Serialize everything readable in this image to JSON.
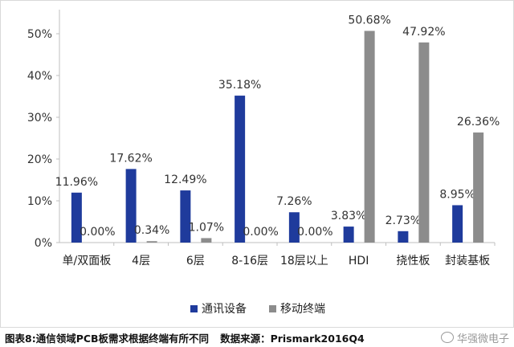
{
  "chart_data": {
    "type": "bar",
    "categories": [
      "单/双面板",
      "4层",
      "6层",
      "8-16层",
      "18层以上",
      "HDI",
      "挠性板",
      "封装基板"
    ],
    "series": [
      {
        "name": "通讯设备",
        "values": [
          11.96,
          17.62,
          12.49,
          35.18,
          7.26,
          3.83,
          2.73,
          8.95
        ],
        "labels": [
          "11.96%",
          "17.62%",
          "12.49%",
          "35.18%",
          "7.26%",
          "3.83%",
          "2.73%",
          "8.95%"
        ]
      },
      {
        "name": "移动终端",
        "values": [
          0.0,
          0.34,
          1.07,
          0.0,
          0.0,
          50.68,
          47.92,
          26.36
        ],
        "labels": [
          "0.00%",
          "0.34%",
          "1.07%",
          "0.00%",
          "0.00%",
          "50.68%",
          "47.92%",
          "26.36%"
        ]
      }
    ],
    "y_ticks": [
      "0%",
      "10%",
      "20%",
      "30%",
      "40%",
      "50%"
    ],
    "ylim": [
      0,
      55
    ],
    "grid": false,
    "legend_position": "bottom",
    "colors": {
      "通讯设备": "#1f3b9c",
      "移动终端": "#8c8c8c"
    }
  },
  "caption": {
    "part1": "图表8:通信领域PCB板需求根据终端有所不同",
    "part2": "数据来源：Prismark2016Q4"
  },
  "watermark": {
    "text": "华强微电子",
    "icon": "wechat-icon"
  }
}
